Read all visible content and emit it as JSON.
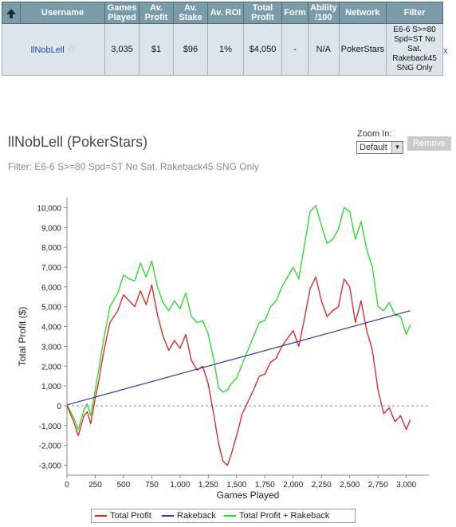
{
  "table": {
    "headers": [
      "Username",
      "Games Played",
      "Av. Profit",
      "Av. Stake",
      "Av. ROI",
      "Total Profit",
      "Form",
      "Ability /100",
      "Network",
      "Filter"
    ],
    "row": {
      "username": "llNobLell",
      "games_played": "3,035",
      "av_profit": "$1",
      "av_stake": "$96",
      "av_roi": "1%",
      "total_profit": "$4,050",
      "form": "-",
      "ability": "N/A",
      "network": "PokerStars",
      "filter": "E6-6 S>=80 Spd=ST No Sat. Rakeback45 SNG Only"
    },
    "remove_row_label": "x"
  },
  "page": {
    "title": "llNobLell (PokerStars)",
    "filter_text": "Filter: E6-6 S>=80 Spd=ST No Sat. Rakeback45 SNG Only",
    "zoom_label": "Zoom In:",
    "zoom_value": "Default",
    "remove_label": "Remove"
  },
  "chart_data": {
    "type": "line",
    "xlabel": "Games Played",
    "ylabel": "Total Profit ($)",
    "xlim": [
      0,
      3200
    ],
    "ylim": [
      -3500,
      10500
    ],
    "x_ticks": [
      "0",
      "250",
      "500",
      "750",
      "1,000",
      "1,250",
      "1,500",
      "1,750",
      "2,000",
      "2,250",
      "2,500",
      "2,750",
      "3,000"
    ],
    "y_ticks": [
      "-3,000",
      "-2,000",
      "-1,000",
      "0",
      "1,000",
      "2,000",
      "3,000",
      "4,000",
      "5,000",
      "6,000",
      "7,000",
      "8,000",
      "9,000",
      "10,000"
    ],
    "series": [
      {
        "name": "Total Profit",
        "color": "#e02020",
        "x": [
          0,
          60,
          100,
          150,
          180,
          210,
          250,
          280,
          320,
          380,
          450,
          500,
          550,
          600,
          650,
          700,
          750,
          800,
          850,
          900,
          950,
          1000,
          1050,
          1100,
          1150,
          1200,
          1250,
          1300,
          1340,
          1380,
          1420,
          1450,
          1500,
          1550,
          1600,
          1650,
          1700,
          1750,
          1800,
          1850,
          1900,
          1950,
          2000,
          2050,
          2100,
          2150,
          2200,
          2250,
          2300,
          2350,
          2400,
          2450,
          2500,
          2550,
          2600,
          2650,
          2700,
          2750,
          2800,
          2850,
          2900,
          2950,
          3000,
          3035
        ],
        "y": [
          0,
          -800,
          -1500,
          -500,
          -300,
          -900,
          400,
          1200,
          2600,
          4200,
          4800,
          5600,
          5300,
          5000,
          5800,
          5100,
          6100,
          4600,
          3500,
          2800,
          3300,
          2900,
          3600,
          2300,
          1800,
          2000,
          1100,
          -500,
          -1900,
          -2800,
          -3000,
          -2500,
          -1500,
          -400,
          200,
          800,
          1500,
          1600,
          2200,
          2400,
          3000,
          3400,
          3800,
          3000,
          4400,
          5900,
          6500,
          5300,
          4500,
          4800,
          5000,
          6400,
          6000,
          4200,
          5300,
          3800,
          2800,
          800,
          -400,
          -100,
          -800,
          -500,
          -1200,
          -700
        ]
      },
      {
        "name": "Rakeback",
        "color": "#2a3aa8",
        "x": [
          0,
          3035
        ],
        "y": [
          50,
          4800
        ]
      },
      {
        "name": "Total Profit + Rakeback",
        "color": "#22dd22",
        "x": [
          0,
          60,
          100,
          150,
          180,
          210,
          250,
          280,
          320,
          380,
          450,
          500,
          550,
          600,
          650,
          700,
          750,
          800,
          850,
          900,
          950,
          1000,
          1050,
          1100,
          1150,
          1200,
          1250,
          1300,
          1340,
          1380,
          1420,
          1450,
          1500,
          1550,
          1600,
          1650,
          1700,
          1750,
          1800,
          1850,
          1900,
          1950,
          2000,
          2050,
          2100,
          2150,
          2200,
          2250,
          2300,
          2350,
          2400,
          2450,
          2500,
          2550,
          2600,
          2650,
          2700,
          2750,
          2800,
          2850,
          2900,
          2950,
          3000,
          3035
        ],
        "y": [
          50,
          -600,
          -1200,
          -200,
          100,
          -500,
          800,
          1800,
          3200,
          5000,
          5700,
          6600,
          6400,
          6300,
          7200,
          6500,
          7300,
          6000,
          5200,
          4800,
          5300,
          4900,
          5700,
          4500,
          4200,
          4300,
          3600,
          2300,
          900,
          700,
          800,
          1100,
          1400,
          2100,
          2800,
          3500,
          4200,
          4300,
          5000,
          5300,
          6000,
          6500,
          7000,
          6400,
          8100,
          9800,
          10100,
          9100,
          8200,
          8400,
          8900,
          10000,
          9800,
          8400,
          9300,
          7900,
          7000,
          5000,
          4800,
          5200,
          4600,
          4500,
          3600,
          4100
        ]
      }
    ],
    "reference_line": {
      "y": 0,
      "style": "dashed"
    },
    "legend": [
      "Total Profit",
      "Rakeback",
      "Total Profit + Rakeback"
    ],
    "legend_position": "bottom"
  }
}
